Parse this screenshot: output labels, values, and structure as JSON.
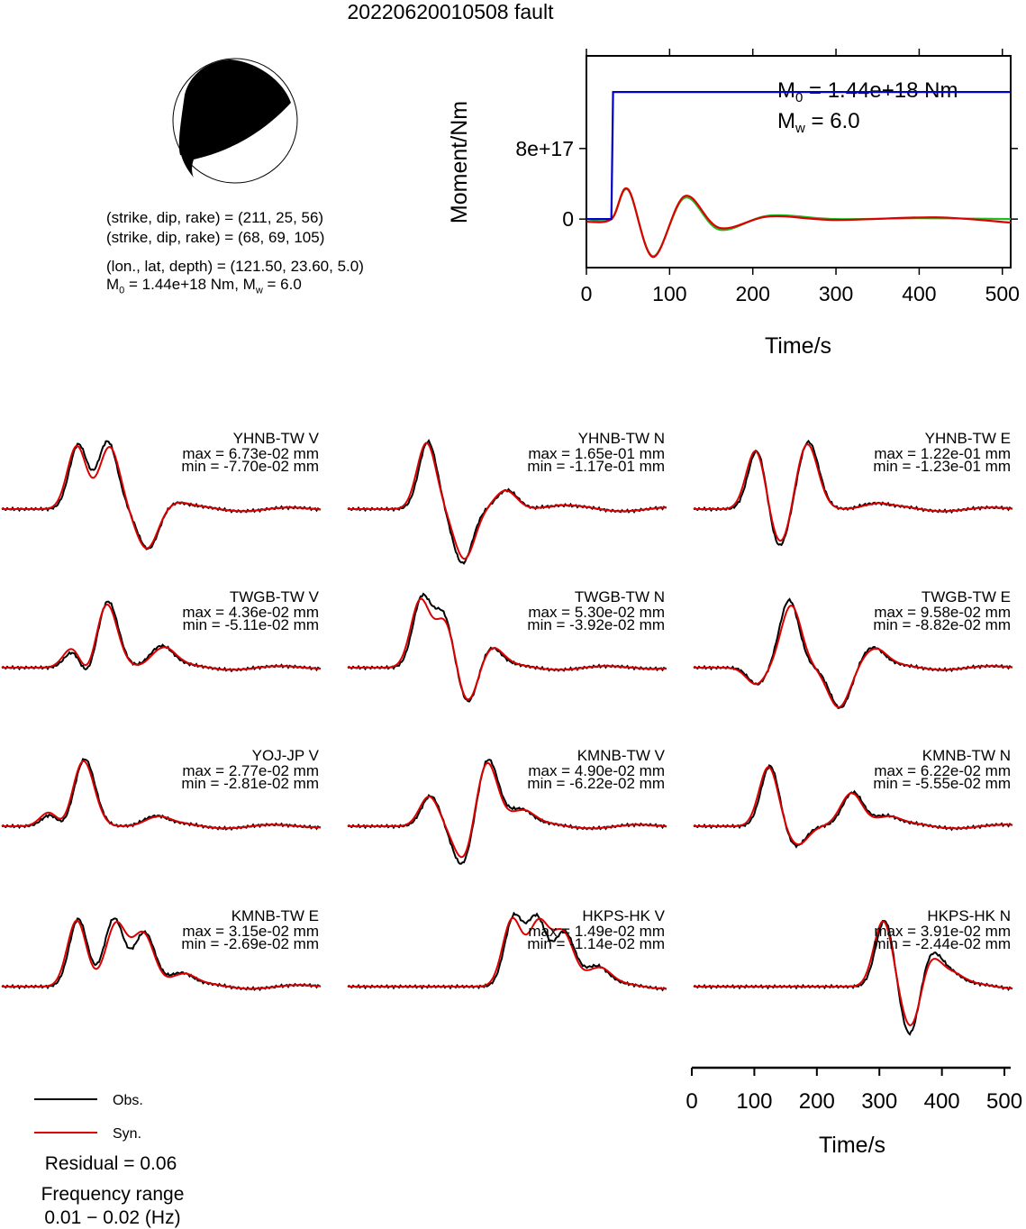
{
  "title": "20220620010508 fault",
  "mechanism": {
    "np1": "(strike, dip, rake) = (211, 25, 56)",
    "np2": "(strike, dip, rake) = (68, 69, 105)",
    "location": "(lon., lat, depth) = (121.50, 23.60, 5.0)",
    "moment_prefix": "M",
    "moment_sub": "0",
    "moment_val": " = 1.44e+18 Nm, ",
    "mw_prefix": "M",
    "mw_sub": "w",
    "mw_val": " = 6.0"
  },
  "moment_plot": {
    "ylabel": "Moment/Nm",
    "xlabel": "Time/s",
    "ytick_labels": [
      "8e+17",
      "0"
    ],
    "xtick_labels": [
      "0",
      "100",
      "200",
      "300",
      "400",
      "500"
    ],
    "m0_prefix": "M",
    "m0_sub": "0",
    "m0_val": " = 1.44e+18 Nm",
    "mw_prefix": "M",
    "mw_sub": "w",
    "mw_val": " = 6.0"
  },
  "colors": {
    "observed": "#000000",
    "synthetic": "#dd0000",
    "moment": "#0000cc",
    "moment_green": "#22bb22"
  },
  "legend": {
    "obs": "Obs.",
    "syn": "Syn."
  },
  "residual": "Residual = 0.06",
  "freq_label": "Frequency range",
  "freq_value": "0.01 − 0.02 (Hz)",
  "time_axis": {
    "xlabel": "Time/s",
    "tick_labels": [
      "0",
      "100",
      "200",
      "300",
      "400",
      "500"
    ]
  },
  "chart_data": [
    {
      "type": "line",
      "title": "",
      "xlabel": "Time/s",
      "ylabel": "Moment/Nm",
      "xlim": [
        0,
        510
      ],
      "ylim": [
        -5.5e+17,
        1.85e+18
      ],
      "yticks": [
        0,
        8e+17
      ],
      "xticks": [
        0,
        100,
        200,
        300,
        400,
        500
      ],
      "series": [
        {
          "color": "#0000cc",
          "x": [
            0,
            30,
            32,
            35,
            510
          ],
          "y": [
            0,
            0,
            1.44e+18,
            1.44e+18,
            1.44e+18
          ]
        },
        {
          "color": "#22bb22",
          "x": [
            0,
            30,
            50,
            80,
            118,
            160,
            220,
            300,
            400,
            510
          ],
          "y": [
            0,
            0,
            3.3e+17,
            -4.2e+17,
            2.4e+17,
            -1.2e+17,
            4e+16,
            0,
            1e+16,
            0
          ]
        },
        {
          "color": "#dd0000",
          "x": [
            0,
            30,
            50,
            80,
            118,
            160,
            220,
            300,
            420,
            510
          ],
          "y": [
            -3e+16,
            0,
            3.4e+17,
            -4.3e+17,
            2.6e+17,
            -1e+17,
            3e+16,
            -1e+16,
            2e+16,
            -4e+16
          ]
        }
      ]
    },
    {
      "type": "line",
      "title": "waveform fits",
      "xlim": [
        0,
        510
      ],
      "stations": [
        {
          "name": "YHNB-TW V",
          "max": "max = 6.73e-02 mm",
          "min": "min = -7.70e-02 mm"
        },
        {
          "name": "YHNB-TW N",
          "max": "max = 1.65e-01 mm",
          "min": "min = -1.17e-01 mm"
        },
        {
          "name": "YHNB-TW E",
          "max": "max = 1.22e-01 mm",
          "min": "min = -1.23e-01 mm"
        },
        {
          "name": "TWGB-TW V",
          "max": "max = 4.36e-02 mm",
          "min": "min = -5.11e-02 mm"
        },
        {
          "name": "TWGB-TW N",
          "max": "max = 5.30e-02 mm",
          "min": "min = -3.92e-02 mm"
        },
        {
          "name": "TWGB-TW E",
          "max": "max = 9.58e-02 mm",
          "min": "min = -8.82e-02 mm"
        },
        {
          "name": "YOJ-JP V",
          "max": "max = 2.77e-02 mm",
          "min": "min = -2.81e-02 mm"
        },
        {
          "name": "KMNB-TW V",
          "max": "max = 4.90e-02 mm",
          "min": "min = -6.22e-02 mm"
        },
        {
          "name": "KMNB-TW N",
          "max": "max = 6.22e-02 mm",
          "min": "min = -5.55e-02 mm"
        },
        {
          "name": "KMNB-TW E",
          "max": "max = 3.15e-02 mm",
          "min": "min = -2.69e-02 mm"
        },
        {
          "name": "HKPS-HK V",
          "max": "max = 1.49e-02 mm",
          "min": "min = -1.14e-02 mm"
        },
        {
          "name": "HKPS-HK N",
          "max": "max = 3.91e-02 mm",
          "min": "min = -2.44e-02 mm"
        }
      ],
      "wave_params": [
        [
          [
            60,
            0.95
          ],
          [
            83,
            1.0
          ],
          [
            115,
            -0.6
          ],
          [
            133,
            0.1
          ]
        ],
        [
          [
            63,
            1.0
          ],
          [
            90,
            -0.8
          ],
          [
            125,
            0.28
          ],
          [
            160,
            0.04
          ]
        ],
        [
          [
            50,
            0.9
          ],
          [
            67,
            -0.6
          ],
          [
            90,
            1.0
          ],
          [
            140,
            0.08
          ]
        ],
        [
          [
            58,
            0.4
          ],
          [
            65,
            -0.35
          ],
          [
            83,
            1.0
          ],
          [
            125,
            0.32
          ]
        ],
        [
          [
            58,
            1.0
          ],
          [
            75,
            0.8
          ],
          [
            95,
            -0.6
          ],
          [
            110,
            0.35
          ]
        ],
        [
          [
            50,
            -0.25
          ],
          [
            75,
            1.0
          ],
          [
            115,
            -0.6
          ],
          [
            140,
            0.3
          ]
        ],
        [
          [
            40,
            0.3
          ],
          [
            45,
            -0.2
          ],
          [
            65,
            1.0
          ],
          [
            120,
            0.15
          ]
        ],
        [
          [
            65,
            0.45
          ],
          [
            90,
            -0.6
          ],
          [
            110,
            1.0
          ],
          [
            135,
            0.25
          ]
        ],
        [
          [
            60,
            0.9
          ],
          [
            80,
            -0.3
          ],
          [
            125,
            0.5
          ],
          [
            150,
            0.15
          ]
        ],
        [
          [
            60,
            1.0
          ],
          [
            88,
            1.0
          ],
          [
            112,
            0.8
          ],
          [
            140,
            0.2
          ]
        ],
        [
          [
            130,
            1.0
          ],
          [
            148,
            1.0
          ],
          [
            170,
            0.8
          ],
          [
            195,
            0.3
          ]
        ],
        [
          [
            150,
            1.0
          ],
          [
            170,
            -0.8
          ],
          [
            185,
            0.5
          ],
          [
            200,
            0.2
          ]
        ]
      ]
    }
  ]
}
